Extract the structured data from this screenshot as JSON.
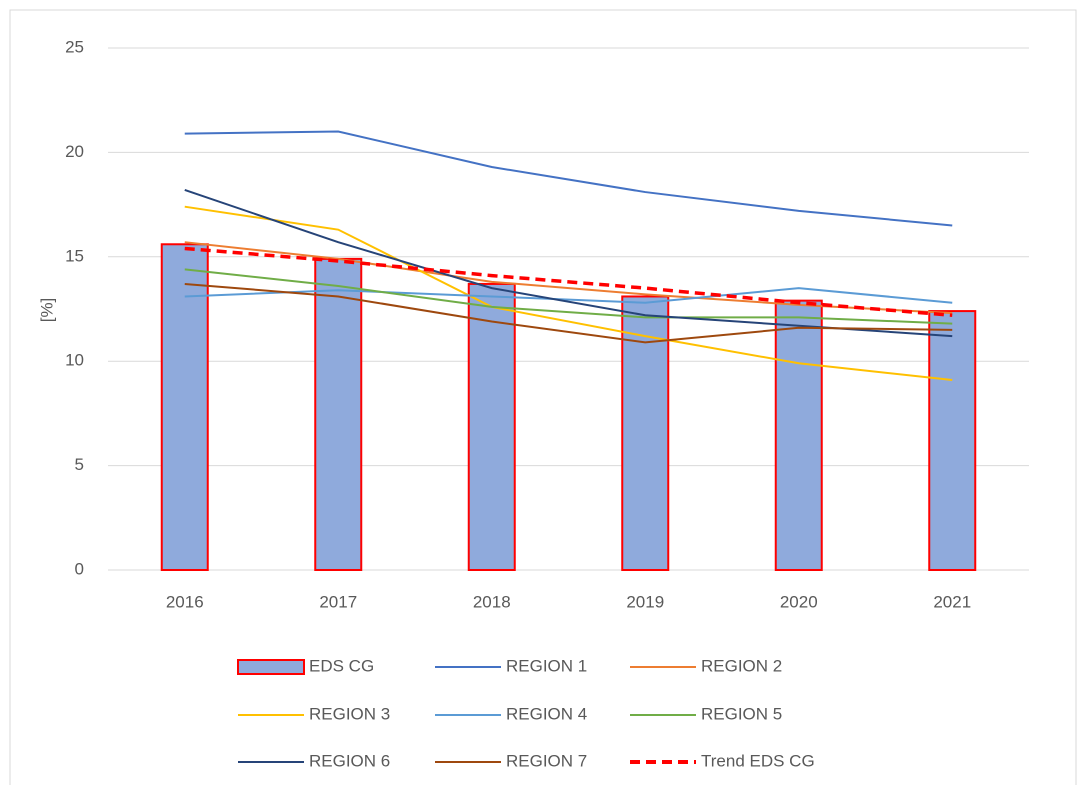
{
  "chart_data": {
    "type": "bar",
    "y_label": "[%]",
    "categories": [
      "2016",
      "2017",
      "2018",
      "2019",
      "2020",
      "2021"
    ],
    "ylim": [
      0,
      25
    ],
    "yticks": [
      0,
      5,
      10,
      15,
      20,
      25
    ],
    "grid": true,
    "series": [
      {
        "name": "EDS CG",
        "type": "bar",
        "color": "#8faadc",
        "edge": "#ff0000",
        "values": [
          15.6,
          14.9,
          13.7,
          13.1,
          12.9,
          12.4
        ]
      },
      {
        "name": "REGION 1",
        "type": "line",
        "color": "#4472c4",
        "values": [
          20.9,
          21.0,
          19.3,
          18.1,
          17.2,
          16.5
        ]
      },
      {
        "name": "REGION 2",
        "type": "line",
        "color": "#ed7d31",
        "values": [
          15.7,
          14.9,
          13.8,
          13.2,
          12.7,
          12.3
        ]
      },
      {
        "name": "REGION 3",
        "type": "line",
        "color": "#ffc000",
        "values": [
          17.4,
          16.3,
          12.6,
          11.2,
          9.9,
          9.1
        ]
      },
      {
        "name": "REGION 4",
        "type": "line",
        "color": "#5b9bd5",
        "values": [
          13.1,
          13.4,
          13.1,
          12.8,
          13.5,
          12.8
        ]
      },
      {
        "name": "REGION 5",
        "type": "line",
        "color": "#70ad47",
        "values": [
          14.4,
          13.6,
          12.6,
          12.1,
          12.1,
          11.8
        ]
      },
      {
        "name": "REGION 6",
        "type": "line",
        "color": "#264478",
        "values": [
          18.2,
          15.7,
          13.5,
          12.2,
          11.7,
          11.2
        ]
      },
      {
        "name": "REGION 7",
        "type": "line",
        "color": "#9e480e",
        "values": [
          13.7,
          13.1,
          11.9,
          10.9,
          11.6,
          11.5
        ]
      },
      {
        "name": "Trend EDS CG",
        "type": "line",
        "dashed": true,
        "color": "#ff0000",
        "values": [
          15.4,
          14.8,
          14.1,
          13.5,
          12.8,
          12.2
        ]
      }
    ],
    "legend": "bottom"
  }
}
